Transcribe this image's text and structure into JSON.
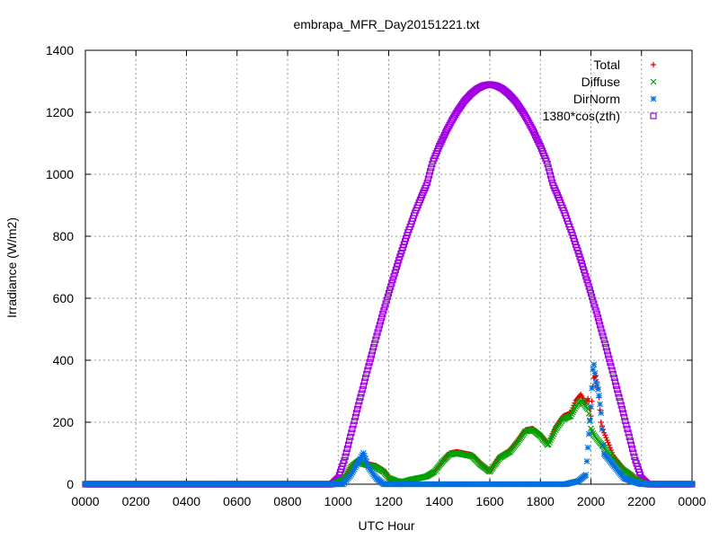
{
  "chart_data": {
    "type": "scatter",
    "title": "embrapa_MFR_Day20151221.txt",
    "xlabel": "UTC Hour",
    "ylabel": "Irradiance (W/m2)",
    "xlim": [
      0,
      24
    ],
    "ylim": [
      0,
      1400
    ],
    "grid": true,
    "legend_position": "top-right",
    "x_ticks": [
      {
        "value": 0,
        "label": "0000"
      },
      {
        "value": 2,
        "label": "0200"
      },
      {
        "value": 4,
        "label": "0400"
      },
      {
        "value": 6,
        "label": "0600"
      },
      {
        "value": 8,
        "label": "0800"
      },
      {
        "value": 10,
        "label": "1000"
      },
      {
        "value": 12,
        "label": "1200"
      },
      {
        "value": 14,
        "label": "1400"
      },
      {
        "value": 16,
        "label": "1600"
      },
      {
        "value": 18,
        "label": "1800"
      },
      {
        "value": 20,
        "label": "2000"
      },
      {
        "value": 22,
        "label": "2200"
      },
      {
        "value": 24,
        "label": "0000"
      }
    ],
    "y_ticks": [
      {
        "value": 0,
        "label": "0"
      },
      {
        "value": 200,
        "label": "200"
      },
      {
        "value": 400,
        "label": "400"
      },
      {
        "value": 600,
        "label": "600"
      },
      {
        "value": 800,
        "label": "800"
      },
      {
        "value": 1000,
        "label": "1000"
      },
      {
        "value": 1200,
        "label": "1200"
      },
      {
        "value": 1400,
        "label": "1400"
      }
    ],
    "series": [
      {
        "name": "Total",
        "marker": "plus",
        "color": "#e00000",
        "x": [
          0,
          9.8,
          10.2,
          10.5,
          10.8,
          11.0,
          11.2,
          11.5,
          11.8,
          12.0,
          12.3,
          12.6,
          12.9,
          13.2,
          13.5,
          13.8,
          14.1,
          14.4,
          14.7,
          15.0,
          15.3,
          15.6,
          16.0,
          16.4,
          16.8,
          17.1,
          17.4,
          17.7,
          18.0,
          18.3,
          18.6,
          18.9,
          19.2,
          19.4,
          19.6,
          19.8,
          19.9,
          20.0,
          20.1,
          20.2,
          20.3,
          20.4,
          20.5,
          20.7,
          20.9,
          21.1,
          21.3,
          21.6,
          21.8,
          22.0,
          22.2,
          24
        ],
        "y": [
          0,
          0,
          15,
          55,
          80,
          70,
          65,
          60,
          45,
          20,
          10,
          8,
          15,
          20,
          25,
          40,
          70,
          100,
          105,
          100,
          95,
          70,
          40,
          90,
          110,
          140,
          175,
          180,
          160,
          130,
          185,
          220,
          230,
          270,
          290,
          260,
          280,
          220,
          340,
          350,
          300,
          200,
          170,
          130,
          90,
          70,
          50,
          30,
          15,
          5,
          0,
          0
        ]
      },
      {
        "name": "Diffuse",
        "marker": "cross",
        "color": "#00a000",
        "x": [
          0,
          9.8,
          10.2,
          10.5,
          10.8,
          11.0,
          11.2,
          11.5,
          11.8,
          12.0,
          12.3,
          12.6,
          12.9,
          13.2,
          13.5,
          13.8,
          14.1,
          14.4,
          14.7,
          15.0,
          15.3,
          15.6,
          16.0,
          16.4,
          16.8,
          17.1,
          17.4,
          17.7,
          18.0,
          18.3,
          18.6,
          18.9,
          19.2,
          19.4,
          19.6,
          19.8,
          19.9,
          20.0,
          20.1,
          20.2,
          20.3,
          20.4,
          20.5,
          20.7,
          20.9,
          21.1,
          21.3,
          21.6,
          21.8,
          22.0,
          22.2,
          24
        ],
        "y": [
          0,
          0,
          15,
          55,
          75,
          65,
          60,
          55,
          40,
          20,
          10,
          8,
          15,
          20,
          25,
          40,
          70,
          95,
          100,
          95,
          90,
          65,
          40,
          85,
          105,
          135,
          170,
          175,
          155,
          125,
          175,
          210,
          220,
          250,
          270,
          250,
          240,
          180,
          160,
          150,
          140,
          130,
          120,
          100,
          80,
          60,
          45,
          28,
          12,
          5,
          0,
          0
        ]
      },
      {
        "name": "DirNorm",
        "marker": "star",
        "color": "#0070e0",
        "x": [
          0,
          9.8,
          10.2,
          10.5,
          10.8,
          11.0,
          11.2,
          11.5,
          11.8,
          12.0,
          14.0,
          16.0,
          18.0,
          19.0,
          19.5,
          19.8,
          20.0,
          20.1,
          20.2,
          20.3,
          20.4,
          20.5,
          20.7,
          20.9,
          21.1,
          21.3,
          21.6,
          21.8,
          22.0,
          22.2,
          24
        ],
        "y": [
          0,
          0,
          0,
          30,
          70,
          100,
          55,
          20,
          0,
          0,
          0,
          0,
          0,
          0,
          10,
          30,
          250,
          400,
          330,
          300,
          230,
          100,
          80,
          60,
          40,
          20,
          10,
          5,
          0,
          0,
          0
        ]
      },
      {
        "name": "1380*cos(zth)",
        "marker": "open-square",
        "color": "#a000e0",
        "x": [
          0,
          9.75,
          10.0,
          10.25,
          10.5,
          10.75,
          11.0,
          11.25,
          11.5,
          11.75,
          12.0,
          12.25,
          12.5,
          12.75,
          13.0,
          13.25,
          13.5,
          13.75,
          14.0,
          14.25,
          14.5,
          14.75,
          15.0,
          15.25,
          15.5,
          15.75,
          16.0,
          16.25,
          16.5,
          16.75,
          17.0,
          17.25,
          17.5,
          17.75,
          18.0,
          18.25,
          18.5,
          18.75,
          19.0,
          19.25,
          19.5,
          19.75,
          20.0,
          20.25,
          20.5,
          20.75,
          21.0,
          21.25,
          21.5,
          21.75,
          22.0,
          22.25,
          24
        ],
        "y": [
          0,
          0,
          20,
          79,
          159,
          239,
          318,
          396,
          472,
          546,
          616,
          684,
          749,
          810,
          867,
          919,
          967,
          1042,
          1091,
          1135,
          1174,
          1208,
          1237,
          1259,
          1276,
          1286,
          1290,
          1286,
          1276,
          1259,
          1237,
          1208,
          1174,
          1135,
          1091,
          1042,
          967,
          919,
          867,
          810,
          749,
          684,
          616,
          546,
          472,
          396,
          318,
          239,
          159,
          79,
          20,
          0,
          0
        ]
      }
    ]
  }
}
